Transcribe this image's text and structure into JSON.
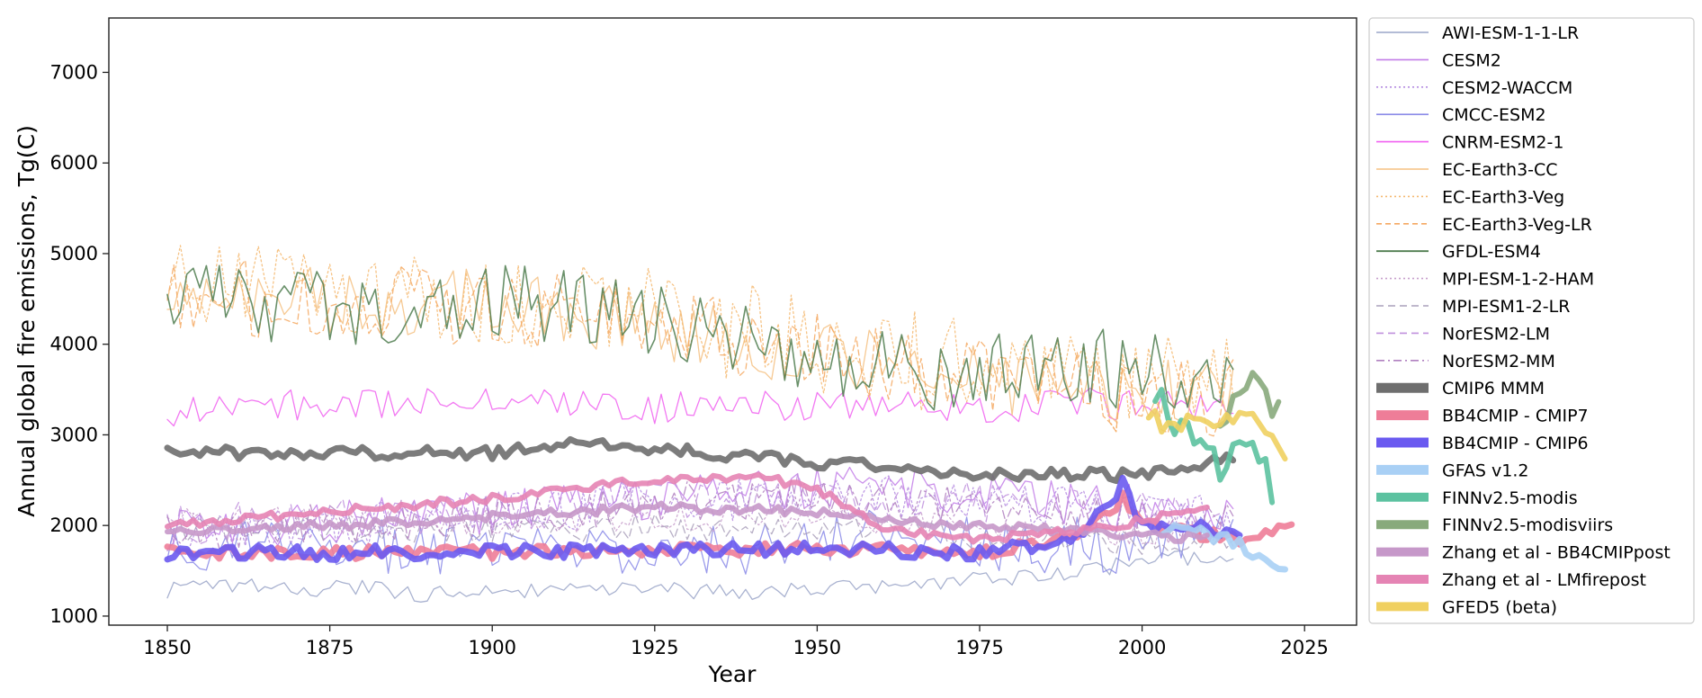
{
  "chart_data": {
    "type": "line",
    "title": "",
    "xlabel": "Year",
    "ylabel": "Annual global fire emissions, Tg(C)",
    "xlim": [
      1841,
      2033
    ],
    "ylim": [
      900,
      7600
    ],
    "xticks": [
      1850,
      1875,
      1900,
      1925,
      1950,
      1975,
      2000,
      2025
    ],
    "yticks": [
      1000,
      2000,
      3000,
      4000,
      5000,
      6000,
      7000
    ],
    "grid": false,
    "legend_position": "outside-right",
    "series": [
      {
        "name": "AWI-ESM-1-1-LR",
        "color": "#9aa5c8",
        "width": 1.3,
        "dash": "",
        "x_range": [
          1850,
          2014
        ],
        "points": [
          [
            1850,
            1290
          ],
          [
            1860,
            1340
          ],
          [
            1870,
            1300
          ],
          [
            1880,
            1320
          ],
          [
            1890,
            1230
          ],
          [
            1900,
            1300
          ],
          [
            1910,
            1260
          ],
          [
            1920,
            1300
          ],
          [
            1930,
            1280
          ],
          [
            1940,
            1260
          ],
          [
            1950,
            1300
          ],
          [
            1960,
            1340
          ],
          [
            1970,
            1380
          ],
          [
            1980,
            1420
          ],
          [
            1990,
            1480
          ],
          [
            2000,
            1600
          ],
          [
            2014,
            1700
          ]
        ],
        "noise": 90,
        "seed": 11
      },
      {
        "name": "CESM2",
        "color": "#c27ce8",
        "width": 1.3,
        "dash": "",
        "x_range": [
          1850,
          2014
        ],
        "points": [
          [
            1850,
            1950
          ],
          [
            1875,
            2050
          ],
          [
            1900,
            2150
          ],
          [
            1920,
            2300
          ],
          [
            1940,
            2350
          ],
          [
            1960,
            2450
          ],
          [
            1980,
            2300
          ],
          [
            2000,
            2200
          ],
          [
            2014,
            2100
          ]
        ],
        "noise": 250,
        "seed": 12
      },
      {
        "name": "CESM2-WACCM",
        "color": "#b48ae0",
        "width": 1.3,
        "dash": "2,3",
        "x_range": [
          1850,
          2014
        ],
        "points": [
          [
            1850,
            1900
          ],
          [
            1875,
            2000
          ],
          [
            1900,
            2100
          ],
          [
            1920,
            2250
          ],
          [
            1940,
            2300
          ],
          [
            1960,
            2350
          ],
          [
            1980,
            2250
          ],
          [
            2000,
            2150
          ],
          [
            2014,
            2050
          ]
        ],
        "noise": 250,
        "seed": 13
      },
      {
        "name": "CMCC-ESM2",
        "color": "#8a8ae8",
        "width": 1.3,
        "dash": "",
        "x_range": [
          1850,
          2014
        ],
        "points": [
          [
            1850,
            1800
          ],
          [
            1900,
            1750
          ],
          [
            1940,
            1750
          ],
          [
            1960,
            2000
          ],
          [
            1970,
            1900
          ],
          [
            1980,
            1750
          ],
          [
            1990,
            1800
          ],
          [
            2000,
            1750
          ],
          [
            2014,
            1900
          ]
        ],
        "noise": 300,
        "seed": 14
      },
      {
        "name": "CNRM-ESM2-1",
        "color": "#f060f0",
        "width": 1.3,
        "dash": "",
        "x_range": [
          1850,
          2014
        ],
        "points": [
          [
            1850,
            3250
          ],
          [
            1875,
            3350
          ],
          [
            1900,
            3400
          ],
          [
            1925,
            3300
          ],
          [
            1950,
            3300
          ],
          [
            1975,
            3300
          ],
          [
            2000,
            3350
          ],
          [
            2014,
            3300
          ]
        ],
        "noise": 180,
        "seed": 15
      },
      {
        "name": "EC-Earth3-CC",
        "color": "#f5c080",
        "width": 1.3,
        "dash": "",
        "x_range": [
          1850,
          2014
        ],
        "points": [
          [
            1850,
            4500
          ],
          [
            1875,
            4500
          ],
          [
            1900,
            4450
          ],
          [
            1925,
            4200
          ],
          [
            1950,
            3900
          ],
          [
            1975,
            3600
          ],
          [
            2000,
            3500
          ],
          [
            2014,
            3450
          ]
        ],
        "noise": 380,
        "seed": 16
      },
      {
        "name": "EC-Earth3-Veg",
        "color": "#f5b870",
        "width": 1.3,
        "dash": "2,3",
        "x_range": [
          1850,
          2014
        ],
        "points": [
          [
            1850,
            4600
          ],
          [
            1875,
            4650
          ],
          [
            1900,
            4500
          ],
          [
            1925,
            4300
          ],
          [
            1950,
            4000
          ],
          [
            1975,
            3700
          ],
          [
            2000,
            3550
          ],
          [
            2014,
            3500
          ]
        ],
        "noise": 550,
        "seed": 17
      },
      {
        "name": "EC-Earth3-Veg-LR",
        "color": "#f5a860",
        "width": 1.3,
        "dash": "6,4",
        "x_range": [
          1850,
          2014
        ],
        "points": [
          [
            1850,
            4500
          ],
          [
            1875,
            4500
          ],
          [
            1900,
            4400
          ],
          [
            1925,
            4200
          ],
          [
            1950,
            3900
          ],
          [
            1975,
            3600
          ],
          [
            2000,
            3450
          ],
          [
            2014,
            3400
          ]
        ],
        "noise": 450,
        "seed": 18
      },
      {
        "name": "GFDL-ESM4",
        "color": "#4f7d4f",
        "width": 1.6,
        "dash": "",
        "x_range": [
          1850,
          2014
        ],
        "points": [
          [
            1850,
            4500
          ],
          [
            1875,
            4400
          ],
          [
            1900,
            4500
          ],
          [
            1925,
            4200
          ],
          [
            1950,
            3900
          ],
          [
            1975,
            3650
          ],
          [
            2000,
            3750
          ],
          [
            2014,
            3700
          ]
        ],
        "noise": 450,
        "seed": 19
      },
      {
        "name": "MPI-ESM-1-2-HAM",
        "color": "#c8a0cc",
        "width": 1.3,
        "dash": "2,3",
        "x_range": [
          1850,
          2014
        ],
        "points": [
          [
            1850,
            2050
          ],
          [
            1900,
            2050
          ],
          [
            1950,
            2100
          ],
          [
            1980,
            1950
          ],
          [
            2014,
            1900
          ]
        ],
        "noise": 150,
        "seed": 20
      },
      {
        "name": "MPI-ESM1-2-LR",
        "color": "#aaa0bb",
        "width": 1.3,
        "dash": "8,5",
        "x_range": [
          1850,
          2014
        ],
        "points": [
          [
            1850,
            1950
          ],
          [
            1900,
            1950
          ],
          [
            1950,
            2000
          ],
          [
            1980,
            1850
          ],
          [
            2014,
            1800
          ]
        ],
        "noise": 150,
        "seed": 21
      },
      {
        "name": "NorESM2-LM",
        "color": "#c090dd",
        "width": 1.3,
        "dash": "8,5",
        "x_range": [
          1850,
          2014
        ],
        "points": [
          [
            1850,
            2000
          ],
          [
            1900,
            2150
          ],
          [
            1925,
            2300
          ],
          [
            1950,
            2350
          ],
          [
            1975,
            2250
          ],
          [
            2000,
            2150
          ],
          [
            2014,
            2050
          ]
        ],
        "noise": 230,
        "seed": 22
      },
      {
        "name": "NorESM2-MM",
        "color": "#b080c0",
        "width": 1.3,
        "dash": "9,4,2,4",
        "x_range": [
          1850,
          2014
        ],
        "points": [
          [
            1850,
            1950
          ],
          [
            1900,
            2100
          ],
          [
            1925,
            2250
          ],
          [
            1950,
            2300
          ],
          [
            1975,
            2200
          ],
          [
            2000,
            2100
          ],
          [
            2014,
            2000
          ]
        ],
        "noise": 230,
        "seed": 23
      },
      {
        "name": "CMIP6 MMM",
        "color": "#6e6e6e",
        "width": 7,
        "dash": "",
        "x_range": [
          1850,
          2014
        ],
        "points": [
          [
            1850,
            2800
          ],
          [
            1875,
            2800
          ],
          [
            1900,
            2800
          ],
          [
            1913,
            2900
          ],
          [
            1925,
            2850
          ],
          [
            1950,
            2700
          ],
          [
            1975,
            2550
          ],
          [
            2000,
            2560
          ],
          [
            2014,
            2750
          ]
        ],
        "noise": 70,
        "seed": 24
      },
      {
        "name": "BB4CMIP - CMIP7",
        "color": "#ee7d98",
        "width": 7,
        "dash": "",
        "x_range": [
          1850,
          2023
        ],
        "points": [
          [
            1850,
            1700
          ],
          [
            1900,
            1700
          ],
          [
            1950,
            1750
          ],
          [
            1975,
            1700
          ],
          [
            1990,
            1850
          ],
          [
            1997,
            2300
          ],
          [
            2000,
            2000
          ],
          [
            2015,
            1850
          ],
          [
            2023,
            2000
          ]
        ],
        "noise": 70,
        "seed": 25
      },
      {
        "name": "BB4CMIP - CMIP6",
        "color": "#6a5af0",
        "width": 7,
        "dash": "",
        "x_range": [
          1850,
          2015
        ],
        "points": [
          [
            1850,
            1700
          ],
          [
            1900,
            1700
          ],
          [
            1950,
            1750
          ],
          [
            1975,
            1700
          ],
          [
            1990,
            1850
          ],
          [
            1997,
            2450
          ],
          [
            2000,
            2000
          ],
          [
            2015,
            1950
          ]
        ],
        "noise": 80,
        "seed": 26
      },
      {
        "name": "GFAS v1.2",
        "color": "#a9d0f5",
        "width": 7,
        "dash": "",
        "x_range": [
          2003,
          2022
        ],
        "points": [
          [
            2003,
            1950
          ],
          [
            2010,
            1900
          ],
          [
            2015,
            1800
          ],
          [
            2019,
            1600
          ],
          [
            2022,
            1450
          ]
        ],
        "noise": 70,
        "seed": 27
      },
      {
        "name": "FINNv2.5-modis",
        "color": "#5cc2a0",
        "width": 6,
        "dash": "",
        "x_range": [
          2002,
          2020
        ],
        "points": [
          [
            2002,
            3500
          ],
          [
            2005,
            3200
          ],
          [
            2008,
            2950
          ],
          [
            2012,
            2700
          ],
          [
            2016,
            3000
          ],
          [
            2020,
            2400
          ]
        ],
        "noise": 200,
        "seed": 28
      },
      {
        "name": "FINNv2.5-modisviirs",
        "color": "#88aa7c",
        "width": 6,
        "dash": "",
        "x_range": [
          2012,
          2021
        ],
        "points": [
          [
            2012,
            3200
          ],
          [
            2015,
            3600
          ],
          [
            2018,
            3500
          ],
          [
            2021,
            3300
          ]
        ],
        "noise": 200,
        "seed": 29
      },
      {
        "name": "Zhang et al - BB4CMIPpost",
        "color": "#c698c9",
        "width": 6,
        "dash": "",
        "x_range": [
          1850,
          2010
        ],
        "points": [
          [
            1850,
            1950
          ],
          [
            1875,
            2000
          ],
          [
            1900,
            2100
          ],
          [
            1925,
            2200
          ],
          [
            1950,
            2150
          ],
          [
            1960,
            2050
          ],
          [
            1975,
            2000
          ],
          [
            2000,
            1900
          ],
          [
            2010,
            1850
          ]
        ],
        "noise": 50,
        "seed": 30
      },
      {
        "name": "Zhang et al - LMfirepost",
        "color": "#e584b4",
        "width": 6,
        "dash": "",
        "x_range": [
          1850,
          2010
        ],
        "points": [
          [
            1850,
            2000
          ],
          [
            1875,
            2150
          ],
          [
            1900,
            2300
          ],
          [
            1925,
            2500
          ],
          [
            1940,
            2550
          ],
          [
            1950,
            2400
          ],
          [
            1960,
            2000
          ],
          [
            1970,
            1850
          ],
          [
            1985,
            1900
          ],
          [
            2000,
            2050
          ],
          [
            2010,
            2200
          ]
        ],
        "noise": 50,
        "seed": 31
      },
      {
        "name": "GFED5 (beta)",
        "color": "#f0d060",
        "width": 6,
        "dash": "",
        "x_range": [
          2001,
          2022
        ],
        "points": [
          [
            2001,
            3200
          ],
          [
            2005,
            3100
          ],
          [
            2010,
            3150
          ],
          [
            2015,
            3200
          ],
          [
            2020,
            3100
          ],
          [
            2022,
            2750
          ]
        ],
        "noise": 120,
        "seed": 32
      }
    ]
  }
}
